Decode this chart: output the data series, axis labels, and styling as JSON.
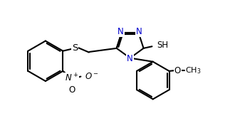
{
  "bg_color": "#ffffff",
  "bond_color": "#000000",
  "N_color": "#0000cd",
  "line_width": 1.5,
  "font_size": 8.5,
  "fig_width": 3.3,
  "fig_height": 1.94,
  "dpi": 100,
  "xlim": [
    0,
    10
  ],
  "ylim": [
    0,
    6
  ]
}
